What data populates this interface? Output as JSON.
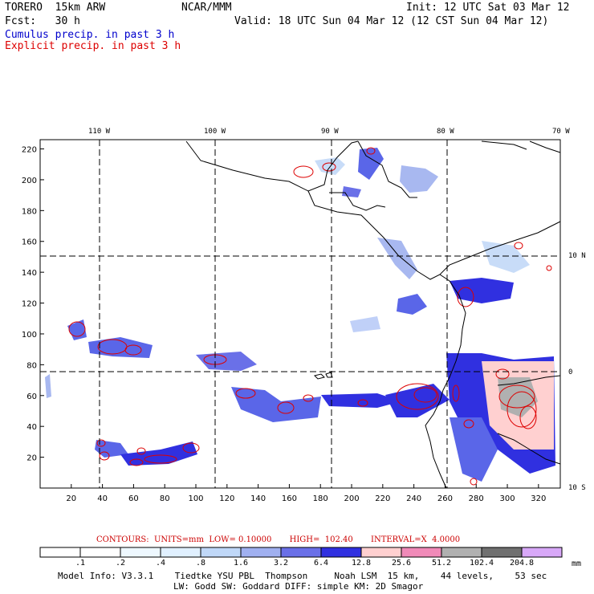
{
  "header": {
    "model": "TORERO  15km ARW",
    "org": "NCAR/MMM",
    "init": "Init: 12 UTC Sat 03 Mar 12",
    "fcst": "Fcst:   30 h",
    "valid": "Valid: 18 UTC Sun 04 Mar 12 (12 CST Sun 04 Mar 12)",
    "legend_cumulus": "Cumulus precip. in past 3 h",
    "legend_explicit": "Explicit precip. in past 3 h"
  },
  "colors": {
    "cumulus": "#0000cc",
    "explicit": "#dd0000",
    "coast": "#000000"
  },
  "map": {
    "top_lon_labels": [
      "110 W",
      "100 W",
      "90 W",
      "80 W",
      "70 W"
    ],
    "right_lat_labels": [
      "10 N",
      "0",
      "10 S"
    ],
    "x_ticks": [
      "20",
      "40",
      "60",
      "80",
      "100",
      "120",
      "140",
      "160",
      "180",
      "200",
      "220",
      "240",
      "260",
      "280",
      "300",
      "320"
    ],
    "y_ticks": [
      "20",
      "40",
      "60",
      "80",
      "100",
      "120",
      "140",
      "160",
      "180",
      "200",
      "220"
    ],
    "x_range": [
      0,
      334
    ],
    "y_range": [
      0,
      226
    ]
  },
  "contours_line": "CONTOURS:  UNITS=mm  LOW= 0.10000       HIGH=  102.40       INTERVAL=X  4.0000",
  "colorbar": {
    "labels": [
      ".1",
      ".2",
      ".4",
      ".8",
      "1.6",
      "3.2",
      "6.4",
      "12.8",
      "25.6",
      "51.2",
      "102.4",
      "204.8"
    ],
    "unit": "mm",
    "colors": [
      "#ffffff",
      "#ffffff",
      "#eef8ff",
      "#e0f0ff",
      "#c0d8f8",
      "#a0b0f0",
      "#6a70e8",
      "#3030e0",
      "#ffd0d0",
      "#f08ab8",
      "#b0b0b0",
      "#707070",
      "#d8a8f8"
    ]
  },
  "footer": {
    "line1": "Model Info: V3.3.1    Tiedtke YSU PBL  Thompson     Noah LSM  15 km,    44 levels,    53 sec",
    "line2": "LW: Godd SW: Goddard DIFF: simple KM: 2D Smagor"
  }
}
